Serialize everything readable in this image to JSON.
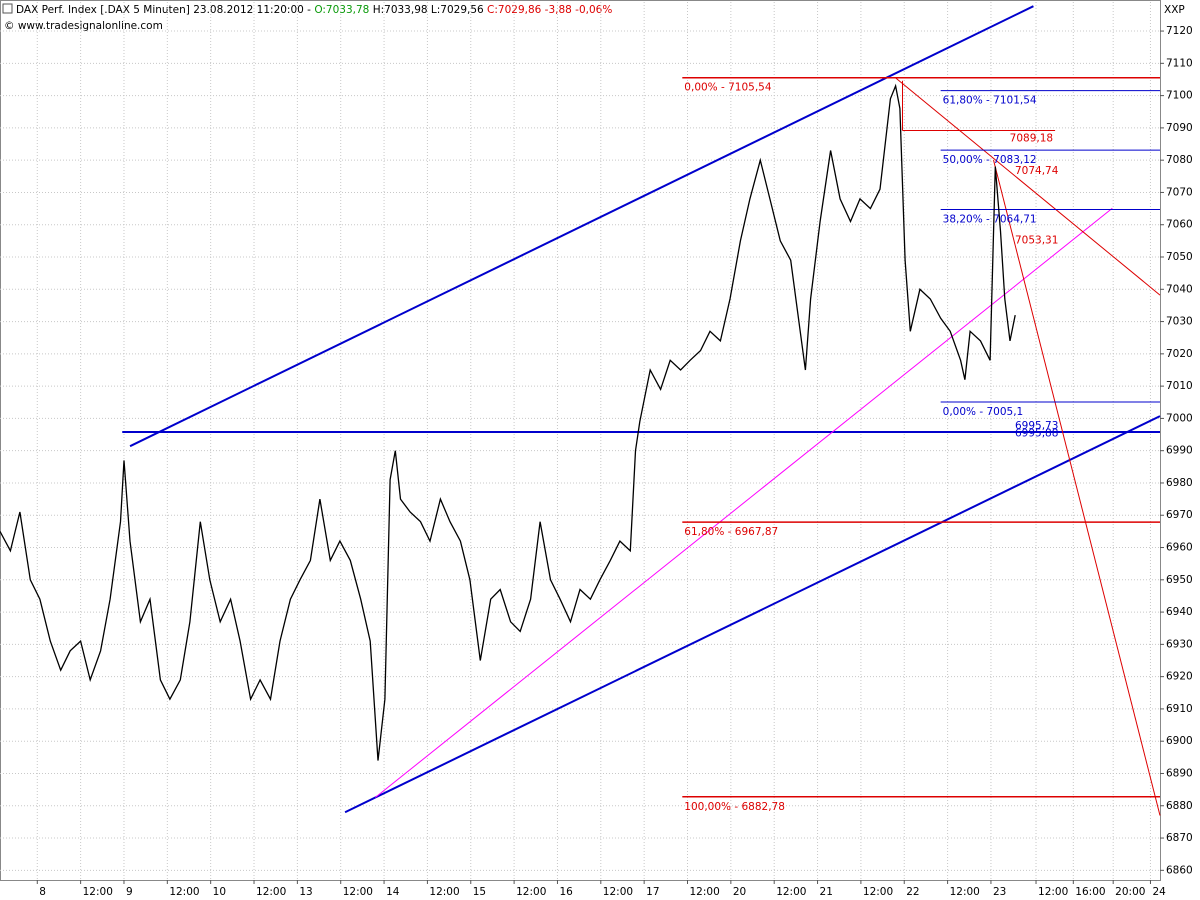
{
  "chart_data": {
    "type": "line",
    "title": "DAX Perf. Index [.DAX 5 Minuten] 23.08.2012 11:20:00 -",
    "open_label": "O:7033,78",
    "hl_label": "H:7033,98 L:7029,56",
    "close_label": "C:7029,86 -3,88 -0,06%",
    "subtitle": "© www.tradesignalonline.com",
    "corner_label": "XXP",
    "grid": true,
    "xlim": [
      -0.43,
      12.95
    ],
    "ylim": [
      6857,
      7129
    ],
    "yticks": [
      6860,
      6870,
      6880,
      6890,
      6900,
      6910,
      6920,
      6930,
      6940,
      6950,
      6960,
      6970,
      6980,
      6990,
      7000,
      7010,
      7020,
      7030,
      7040,
      7050,
      7060,
      7070,
      7080,
      7090,
      7100,
      7110,
      7120
    ],
    "xticks": [
      {
        "value": 0,
        "label": "8"
      },
      {
        "value": 0.5,
        "label": "12:00"
      },
      {
        "value": 1,
        "label": "9"
      },
      {
        "value": 1.5,
        "label": "12:00"
      },
      {
        "value": 2,
        "label": "10"
      },
      {
        "value": 2.5,
        "label": "12:00"
      },
      {
        "value": 3,
        "label": "13"
      },
      {
        "value": 3.5,
        "label": "12:00"
      },
      {
        "value": 4,
        "label": "14"
      },
      {
        "value": 4.5,
        "label": "12:00"
      },
      {
        "value": 5,
        "label": "15"
      },
      {
        "value": 5.5,
        "label": "12:00"
      },
      {
        "value": 6,
        "label": "16"
      },
      {
        "value": 6.5,
        "label": "12:00"
      },
      {
        "value": 7,
        "label": "17"
      },
      {
        "value": 7.5,
        "label": "12:00"
      },
      {
        "value": 8,
        "label": "20"
      },
      {
        "value": 8.5,
        "label": "12:00"
      },
      {
        "value": 9,
        "label": "21"
      },
      {
        "value": 9.5,
        "label": "12:00"
      },
      {
        "value": 10,
        "label": "22"
      },
      {
        "value": 10.5,
        "label": "12:00"
      },
      {
        "value": 11,
        "label": "23"
      },
      {
        "value": 11.52,
        "label": "12:00"
      },
      {
        "value": 11.95,
        "label": "16:00"
      },
      {
        "value": 12.41,
        "label": "20:00"
      },
      {
        "value": 12.84,
        "label": "24"
      }
    ],
    "series": [
      {
        "name": "DAX",
        "color": "#000000",
        "x": [
          -0.43,
          -0.31,
          -0.2,
          -0.08,
          0.03,
          0.15,
          0.27,
          0.38,
          0.5,
          0.61,
          0.73,
          0.84,
          0.96,
          1.0,
          1.07,
          1.19,
          1.3,
          1.42,
          1.53,
          1.65,
          1.76,
          1.88,
          1.99,
          2.11,
          2.23,
          2.34,
          2.46,
          2.57,
          2.69,
          2.8,
          2.92,
          3.03,
          3.15,
          3.26,
          3.38,
          3.49,
          3.61,
          3.73,
          3.84,
          3.93,
          4.01,
          4.07,
          4.13,
          4.19,
          4.3,
          4.42,
          4.53,
          4.65,
          4.76,
          4.88,
          4.99,
          5.11,
          5.23,
          5.34,
          5.46,
          5.57,
          5.69,
          5.8,
          5.92,
          6.03,
          6.15,
          6.26,
          6.38,
          6.49,
          6.61,
          6.72,
          6.84,
          6.9,
          6.95,
          7.07,
          7.19,
          7.3,
          7.42,
          7.53,
          7.65,
          7.76,
          7.88,
          7.99,
          8.11,
          8.22,
          8.34,
          8.45,
          8.57,
          8.69,
          8.8,
          8.86,
          8.92,
          9.03,
          9.15,
          9.26,
          9.38,
          9.49,
          9.61,
          9.72,
          9.84,
          9.9,
          9.95,
          10.01,
          10.07,
          10.18,
          10.3,
          10.42,
          10.53,
          10.65,
          10.7,
          10.76,
          10.88,
          10.99,
          11.05,
          11.11,
          11.16,
          11.22,
          11.28
        ],
        "values": [
          6965,
          6959,
          6971,
          6950,
          6944,
          6931,
          6922,
          6928,
          6931,
          6919,
          6928,
          6944,
          6968,
          6987,
          6962,
          6937,
          6944,
          6919,
          6913,
          6919,
          6937,
          6968,
          6950,
          6937,
          6944,
          6931,
          6913,
          6919,
          6913,
          6931,
          6944,
          6950,
          6956,
          6975,
          6956,
          6962,
          6956,
          6944,
          6931,
          6894,
          6913,
          6981,
          6990,
          6975,
          6971,
          6968,
          6962,
          6975,
          6968,
          6962,
          6950,
          6925,
          6944,
          6947,
          6937,
          6934,
          6944,
          6968,
          6950,
          6944,
          6937,
          6947,
          6944,
          6950,
          6956,
          6962,
          6959,
          6990,
          6999,
          7015,
          7009,
          7018,
          7015,
          7018,
          7021,
          7027,
          7024,
          7037,
          7055,
          7068,
          7080,
          7068,
          7055,
          7049,
          7027,
          7015,
          7037,
          7061,
          7083,
          7068,
          7061,
          7068,
          7065,
          7071,
          7099,
          7103,
          7096,
          7049,
          7027,
          7040,
          7037,
          7031,
          7027,
          7018,
          7012,
          7027,
          7024,
          7018,
          7078,
          7058,
          7037,
          7024,
          7032
        ]
      }
    ],
    "lines": [
      {
        "color": "#0000cc",
        "x": [
          1.07,
          11.49
        ],
        "y": [
          6991.4,
          7127.7
        ]
      },
      {
        "color": "#0000cc",
        "x": [
          3.55,
          12.95
        ],
        "y": [
          6878.0,
          7000.7
        ]
      },
      {
        "color": "#0000cc",
        "x": [
          0.98,
          12.95
        ],
        "y": [
          6995.8,
          6995.8
        ]
      },
      {
        "color": "#ff00ff",
        "x": [
          3.9,
          12.4
        ],
        "y": [
          6882.6,
          7065.1
        ]
      },
      {
        "color": "#dd0000",
        "x": [
          9.9,
          12.95
        ],
        "y": [
          7105.5,
          7038.2
        ]
      },
      {
        "color": "#dd0000",
        "x": [
          11.03,
          12.95
        ],
        "y": [
          7080.0,
          6877.0
        ]
      },
      {
        "color": "#dd0000",
        "x": [
          9.98,
          9.98
        ],
        "y": [
          7104.6,
          7089.18
        ]
      }
    ],
    "levels": [
      {
        "label": "0,00% - 7105,54",
        "value": 7105.54,
        "color": "#dd0000",
        "x": [
          7.44,
          12.95
        ]
      },
      {
        "label": "61,80% - 6967,87",
        "value": 6967.87,
        "color": "#dd0000",
        "x": [
          7.44,
          12.95
        ]
      },
      {
        "label": "100,00% - 6882,78",
        "value": 6882.78,
        "color": "#dd0000",
        "x": [
          7.44,
          12.95
        ]
      },
      {
        "label": "61,80% - 7101,54",
        "value": 7101.54,
        "color": "#0000cc",
        "x": [
          10.42,
          12.95
        ]
      },
      {
        "label": "50,00% - 7083,12",
        "value": 7083.12,
        "color": "#0000cc",
        "x": [
          10.42,
          12.95
        ]
      },
      {
        "label": "38,20% - 7064,71",
        "value": 7064.71,
        "color": "#0000cc",
        "x": [
          10.42,
          12.95
        ]
      },
      {
        "label": "0,00% - 7005,1",
        "value": 7005.1,
        "color": "#0000cc",
        "x": [
          10.42,
          12.95
        ]
      },
      {
        "label": "7089,18",
        "value": 7089.18,
        "color": "#dd0000",
        "x": [
          9.98,
          11.74
        ],
        "end_label": true
      }
    ],
    "price_labels": [
      {
        "label": "7074,74",
        "value": 7074.74,
        "color": "#dd0000"
      },
      {
        "label": "7053,31",
        "value": 7053.31,
        "color": "#dd0000"
      },
      {
        "label": "6995,73",
        "value": 6995.73,
        "color": "#0000cc"
      },
      {
        "label": "6995,88",
        "value": 6995.88,
        "color": "#0000cc"
      }
    ]
  }
}
